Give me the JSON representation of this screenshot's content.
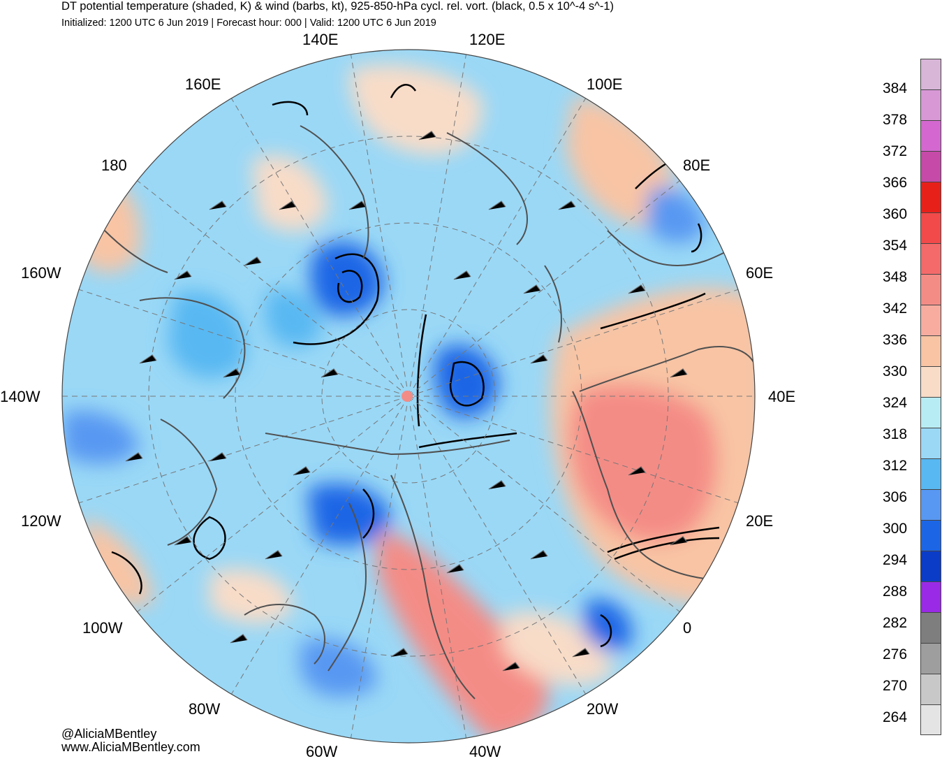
{
  "header": {
    "title": "DT potential temperature (shaded, K) & wind (barbs, kt), 925-850-hPa cycl. rel. vort. (black, 0.5 x 10^-4 s^-1)",
    "subtitle": "Initialized: 1200 UTC 6 Jun 2019 | Forecast hour: 000 | Valid: 1200 UTC 6 Jun 2019"
  },
  "map": {
    "projection": "north-polar-stereographic",
    "longitude_labels": [
      "140E",
      "120E",
      "160E",
      "100E",
      "180",
      "80E",
      "160W",
      "60E",
      "140W",
      "40E",
      "120W",
      "20E",
      "100W",
      "0",
      "80W",
      "20W",
      "60W",
      "40W"
    ]
  },
  "colorbar": {
    "ticks": [
      "384",
      "378",
      "372",
      "366",
      "360",
      "354",
      "348",
      "342",
      "336",
      "330",
      "324",
      "318",
      "312",
      "306",
      "300",
      "294",
      "288",
      "282",
      "276",
      "270",
      "264"
    ],
    "colors": [
      "#d8b6d8",
      "#d898d6",
      "#d468d0",
      "#c64aa8",
      "#e8201a",
      "#f24a4a",
      "#f46a6a",
      "#f48c86",
      "#f8aca0",
      "#f8c4a4",
      "#f8dcc8",
      "#b8ecf4",
      "#9ad8f6",
      "#58b8f2",
      "#5898f2",
      "#1c66e6",
      "#0a3cc8",
      "#9a2ae6",
      "#7e7e7e",
      "#9e9e9e",
      "#c8c8c8",
      "#e4e4e4"
    ]
  },
  "credits": {
    "twitter": "@AliciaMBentley",
    "website": "www.AliciaMBentley.com"
  }
}
